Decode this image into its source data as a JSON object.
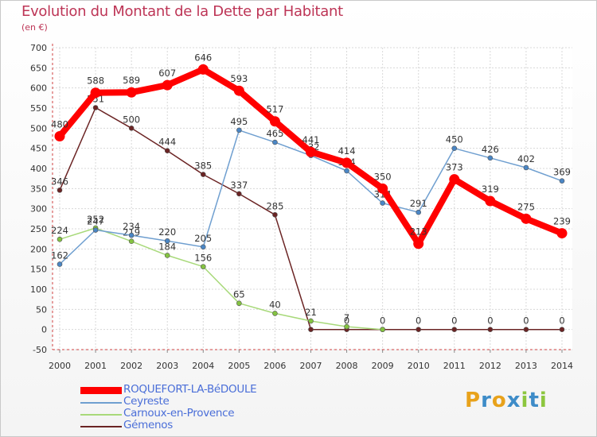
{
  "header": {
    "title": "Evolution du Montant de la Dette par Habitant",
    "subtitle": "(en €)"
  },
  "brand": {
    "letters": [
      "P",
      "r",
      "o",
      "x",
      "i",
      "t",
      "i"
    ],
    "colors": [
      "#e8a21b",
      "#3e8cc8",
      "#e8a21b",
      "#3e8cc8",
      "#8cc63e",
      "#3e8cc8",
      "#8cc63e"
    ]
  },
  "chart_data": {
    "type": "line",
    "x": [
      "2000",
      "2001",
      "2002",
      "2003",
      "2004",
      "2005",
      "2006",
      "2007",
      "2008",
      "2009",
      "2010",
      "2011",
      "2012",
      "2013",
      "2014"
    ],
    "yticks": [
      -50,
      0,
      50,
      100,
      150,
      200,
      250,
      300,
      350,
      400,
      450,
      500,
      550,
      600,
      650,
      700
    ],
    "ylim": [
      -50,
      700
    ],
    "grid": true,
    "legend_position": "bottom-left",
    "series": [
      {
        "name": "Gémenos",
        "color": "#6b2424",
        "marker": "#6b2424",
        "style": "thin",
        "values": [
          346,
          551,
          500,
          444,
          385,
          337,
          285,
          0,
          0,
          0,
          0,
          0,
          0,
          0,
          0
        ],
        "labels": [
          "346",
          "551",
          "500",
          "444",
          "385",
          "337",
          "285",
          "",
          "0",
          "0",
          "0",
          "0",
          "0",
          "0",
          "0"
        ]
      },
      {
        "name": "Carnoux-en-Provence",
        "color": "#a8d97a",
        "marker": "#84c341",
        "style": "thin",
        "values": [
          224,
          252,
          219,
          184,
          156,
          65,
          40,
          21,
          7,
          0,
          null,
          null,
          null,
          null,
          null
        ],
        "labels": [
          "224",
          "252",
          "219",
          "184",
          "156",
          "65",
          "40",
          "21",
          "7",
          "",
          "",
          "",
          "",
          "",
          ""
        ]
      },
      {
        "name": "Ceyreste",
        "color": "#6f9fd0",
        "marker": "#4a86c5",
        "style": "thin",
        "values": [
          162,
          247,
          234,
          220,
          205,
          495,
          465,
          432,
          394,
          314,
          291,
          450,
          426,
          402,
          369
        ],
        "labels": [
          "162",
          "247",
          "234",
          "220",
          "205",
          "495",
          "465",
          "432",
          "394",
          "314",
          "291",
          "450",
          "426",
          "402",
          "369"
        ]
      },
      {
        "name": "ROQUEFORT-LA-BéDOULE",
        "color": "#ff0000",
        "marker": "#ff0000",
        "style": "thick",
        "values": [
          480,
          588,
          589,
          607,
          646,
          593,
          517,
          441,
          414,
          350,
          213,
          373,
          319,
          275,
          239
        ],
        "labels": [
          "480",
          "588",
          "589",
          "607",
          "646",
          "593",
          "517",
          "441",
          "414",
          "350",
          "213",
          "373",
          "319",
          "275",
          "239"
        ]
      }
    ]
  },
  "legend": {
    "items": [
      {
        "label": "ROQUEFORT-LA-BéDOULE",
        "color": "#ff0000",
        "text_color": "#4a6ed8"
      },
      {
        "label": "Ceyreste",
        "color": "#6f9fd0",
        "text_color": "#4a6ed8"
      },
      {
        "label": "Carnoux-en-Provence",
        "color": "#a8d97a",
        "text_color": "#4a6ed8"
      },
      {
        "label": "Gémenos",
        "color": "#6b2424",
        "text_color": "#4a6ed8"
      }
    ]
  }
}
